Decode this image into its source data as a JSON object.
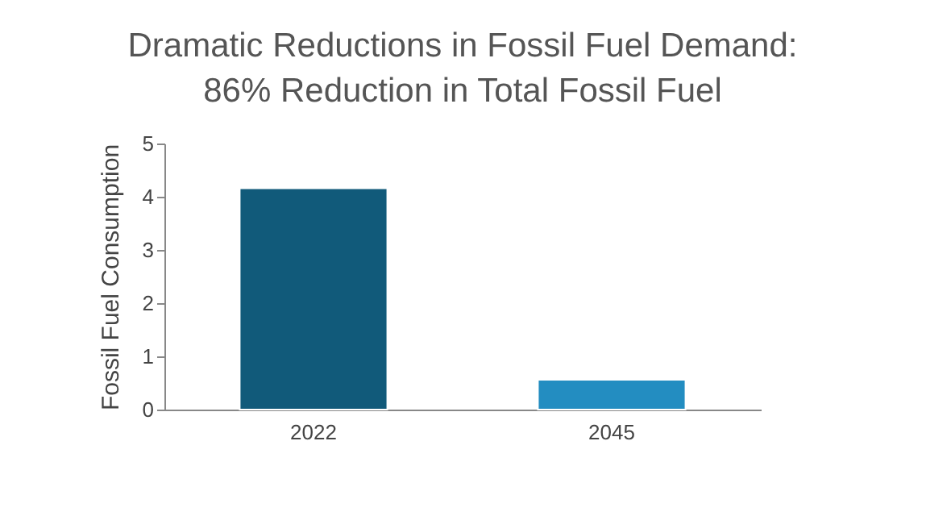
{
  "chart_data": {
    "type": "bar",
    "title": [
      "Dramatic Reductions in Fossil Fuel Demand:",
      "86% Reduction in Total Fossil Fuel"
    ],
    "ylabel": "Fossil Fuel Consumption",
    "categories": [
      "2022",
      "2045"
    ],
    "values": [
      4.16,
      0.56
    ],
    "colors": [
      "#115a7a",
      "#238dc1"
    ],
    "ylim": [
      0,
      5
    ],
    "yticks": [
      0,
      1,
      2,
      3,
      4,
      5
    ]
  }
}
